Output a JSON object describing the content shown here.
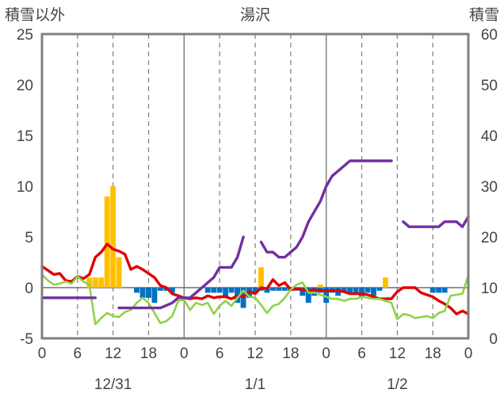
{
  "chart_data": {
    "type": "line",
    "title": "湯沢",
    "y_left_label": "積雪以外",
    "y_right_label": "積雪",
    "ylim_left": [
      -5,
      25
    ],
    "ylim_right": [
      0,
      60
    ],
    "y_left_ticks": [
      -5,
      0,
      5,
      10,
      15,
      20,
      25
    ],
    "y_right_ticks": [
      0,
      10,
      20,
      30,
      40,
      50,
      60
    ],
    "x_range_hours": [
      0,
      72
    ],
    "x_tick_hours": [
      0,
      6,
      12,
      18,
      24,
      30,
      36,
      42,
      48,
      54,
      60,
      66,
      72
    ],
    "x_tick_labels": [
      "0",
      "6",
      "12",
      "18",
      "0",
      "6",
      "12",
      "18",
      "0",
      "6",
      "12",
      "18",
      "0"
    ],
    "day_labels": [
      {
        "label": "12/31",
        "hour": 12
      },
      {
        "label": "1/1",
        "hour": 36
      },
      {
        "label": "1/2",
        "hour": 60
      }
    ],
    "colors": {
      "temperature": "#e00000",
      "dewpoint": "#8fd24a",
      "snow_depth": "#7030a0",
      "precip": "#ffc000",
      "snow_change": "#0070c0",
      "frame": "#808080"
    },
    "grid": "dashed vertical lines every 6 hours, solid at midnight",
    "series": [
      {
        "key": "temperature",
        "axis": "left",
        "x": [
          0,
          1,
          2,
          3,
          4,
          5,
          6,
          7,
          8,
          9,
          10,
          11,
          12,
          13,
          14,
          15,
          16,
          17,
          18,
          19,
          20,
          21,
          22,
          23,
          24,
          25,
          26,
          27,
          28,
          29,
          30,
          31,
          32,
          33,
          34,
          35,
          36,
          37,
          38,
          39,
          40,
          41,
          42,
          43,
          44,
          45,
          46,
          47,
          48,
          49,
          50,
          51,
          52,
          53,
          54,
          55,
          56,
          57,
          58,
          59,
          60,
          61,
          62,
          63,
          64,
          65,
          66,
          67,
          68,
          69,
          70,
          71,
          72
        ],
        "y": [
          2.1,
          1.7,
          1.3,
          1.4,
          0.7,
          0.6,
          1.1,
          0.9,
          1.3,
          3.0,
          3.5,
          4.3,
          3.8,
          3.6,
          3.3,
          1.8,
          2.1,
          1.8,
          1.4,
          1.0,
          0.2,
          0.0,
          -0.6,
          -0.8,
          -1.0,
          -1.1,
          -1.0,
          -1.1,
          -0.8,
          -1.0,
          -0.9,
          -0.9,
          -1.1,
          -0.8,
          -0.9,
          -0.4,
          -0.6,
          0.0,
          -0.1,
          0.8,
          0.2,
          0.5,
          -0.2,
          -0.1,
          -0.2,
          -0.3,
          -0.2,
          -0.3,
          -0.3,
          -0.3,
          -0.3,
          -0.4,
          -0.6,
          -0.6,
          -0.6,
          -0.7,
          -0.9,
          -1.1,
          -1.1,
          -1.1,
          -0.4,
          0.0,
          0.0,
          0.0,
          -0.5,
          -0.7,
          -0.9,
          -1.3,
          -1.6,
          -2.0,
          -2.6,
          -2.3,
          -2.6
        ]
      },
      {
        "key": "dewpoint",
        "axis": "left",
        "x": [
          0,
          1,
          2,
          3,
          4,
          5,
          6,
          7,
          8,
          9,
          10,
          11,
          12,
          13,
          14,
          15,
          16,
          17,
          18,
          19,
          20,
          21,
          22,
          23,
          24,
          25,
          26,
          27,
          28,
          29,
          30,
          31,
          32,
          33,
          34,
          35,
          36,
          37,
          38,
          39,
          40,
          41,
          42,
          43,
          44,
          45,
          46,
          47,
          48,
          49,
          50,
          51,
          52,
          53,
          54,
          55,
          56,
          57,
          58,
          59,
          60,
          61,
          62,
          63,
          64,
          65,
          66,
          67,
          68,
          69,
          70,
          71,
          72
        ],
        "y": [
          1.3,
          0.7,
          0.3,
          0.4,
          0.6,
          0.4,
          1.1,
          0.6,
          0.3,
          -3.6,
          -3.0,
          -2.5,
          -2.8,
          -2.9,
          -2.4,
          -2.2,
          -1.5,
          -1.0,
          -1.5,
          -2.5,
          -3.5,
          -3.3,
          -2.8,
          -1.3,
          -1.2,
          -2.2,
          -1.5,
          -1.7,
          -1.5,
          -2.6,
          -1.8,
          -1.3,
          -1.8,
          -1.0,
          -0.3,
          -0.9,
          -1.0,
          -1.7,
          -2.5,
          -1.8,
          -1.6,
          -1.0,
          -0.2,
          0.3,
          0.5,
          -0.5,
          -0.5,
          -0.7,
          -0.9,
          -1.1,
          -1.1,
          -1.3,
          -1.1,
          -1.1,
          -0.9,
          -1.0,
          -1.1,
          -1.1,
          -1.3,
          -1.5,
          -3.1,
          -2.6,
          -2.7,
          -3.0,
          -2.9,
          -2.8,
          -3.0,
          -2.5,
          -2.3,
          -0.8,
          -0.7,
          -0.6,
          1.2
        ]
      },
      {
        "key": "snow_depth",
        "axis": "right",
        "segments": [
          {
            "x": [
              0,
              9
            ],
            "y": [
              8,
              8
            ]
          },
          {
            "x": [
              13,
              18,
              19,
              20,
              21,
              22,
              23,
              24
            ],
            "y": [
              6,
              6,
              6,
              6,
              6.5,
              7,
              8,
              8
            ]
          },
          {
            "x": [
              24,
              25,
              26,
              27,
              28,
              29,
              30,
              31,
              32,
              33,
              34
            ],
            "y": [
              8,
              8,
              9,
              10,
              11,
              12,
              14,
              14,
              14,
              16,
              20
            ]
          },
          {
            "x": [
              37,
              38,
              39,
              40,
              41,
              42,
              43,
              44,
              45,
              46,
              47,
              48,
              49,
              50,
              51,
              52,
              53,
              54,
              55,
              56,
              57,
              58,
              59
            ],
            "y": [
              19,
              17,
              17,
              16,
              16,
              17,
              18,
              20,
              23,
              25,
              27,
              30,
              32,
              33,
              34,
              35,
              35,
              35,
              35,
              35,
              35,
              35,
              35
            ]
          },
          {
            "x": [
              61,
              62,
              63,
              64,
              65,
              66,
              67,
              68,
              69,
              70,
              71,
              72
            ],
            "y": [
              23,
              22,
              22,
              22,
              22,
              22,
              22,
              23,
              23,
              23,
              22,
              24
            ]
          }
        ]
      },
      {
        "key": "precip",
        "axis": "left",
        "type": "bar",
        "x": [
          8,
          9,
          10,
          11,
          12,
          13,
          14,
          37,
          47,
          58
        ],
        "y": [
          1.0,
          1.0,
          1.0,
          9.0,
          10.0,
          3.0,
          0.0,
          2.0,
          0.3,
          1.0
        ]
      },
      {
        "key": "snow_change",
        "axis": "left",
        "type": "bar",
        "x": [
          16,
          17,
          18,
          19,
          20,
          21,
          22,
          28,
          29,
          30,
          31,
          32,
          33,
          34,
          35,
          36,
          37,
          38,
          39,
          40,
          41,
          42,
          43,
          44,
          45,
          46,
          47,
          48,
          49,
          50,
          51,
          52,
          53,
          54,
          55,
          56,
          57,
          66,
          67,
          68
        ],
        "y": [
          -0.5,
          -1.0,
          -1.0,
          -1.5,
          -0.3,
          -0.3,
          -0.5,
          -0.5,
          -0.5,
          -0.5,
          -1.0,
          -0.5,
          -1.5,
          -2.0,
          -1.0,
          -0.5,
          -0.3,
          -0.5,
          -0.3,
          -0.3,
          -0.3,
          -0.3,
          -0.3,
          -0.8,
          -1.5,
          -0.8,
          -0.5,
          -1.5,
          -0.5,
          -0.8,
          -0.5,
          -0.5,
          -0.5,
          -1.0,
          -0.5,
          -0.8,
          -0.3,
          -0.5,
          -0.5,
          -0.5
        ]
      }
    ]
  }
}
